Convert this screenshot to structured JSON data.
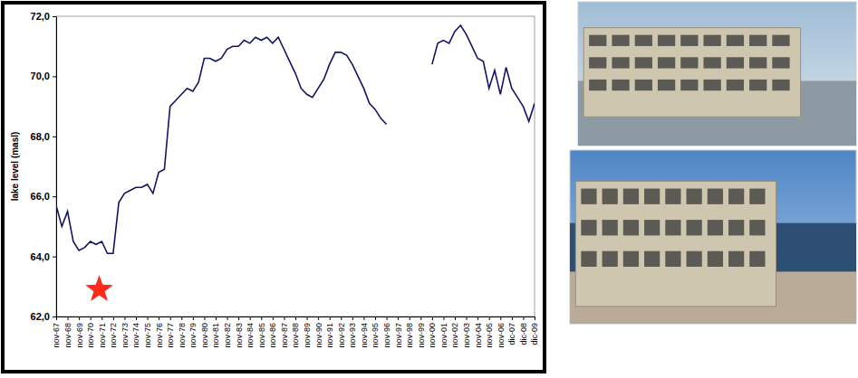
{
  "chart_data": {
    "type": "line",
    "y_label": "lake level (masl)",
    "categories": [
      "nov-67",
      null,
      "nov-68",
      null,
      "nov-69",
      null,
      "nov-70",
      null,
      "nov-71",
      null,
      "nov-72",
      null,
      "nov-73",
      null,
      "nov-74",
      null,
      "nov-75",
      null,
      "nov-76",
      null,
      "nov-77",
      null,
      "nov-78",
      null,
      "nov-79",
      null,
      "nov-80",
      null,
      "nov-81",
      null,
      "nov-82",
      null,
      "nov-83",
      null,
      "nov-84",
      null,
      "nov-85",
      null,
      "nov-86",
      null,
      "nov-87",
      null,
      "nov-88",
      null,
      "nov-89",
      null,
      "nov-90",
      null,
      "nov-91",
      null,
      "nov-92",
      null,
      "nov-93",
      null,
      "nov-94",
      null,
      "nov-95",
      null,
      "nov-96",
      null,
      "nov-97",
      null,
      "nov-98",
      null,
      "nov-99",
      null,
      "nov-00",
      null,
      "nov-01",
      null,
      "nov-02",
      null,
      "nov-03",
      null,
      "nov-04",
      null,
      "nov-05",
      null,
      "nov-06",
      null,
      "dic-07",
      null,
      "dic-08",
      null,
      "dic-09"
    ],
    "values": [
      65.7,
      65.0,
      65.5,
      64.5,
      64.2,
      64.3,
      64.5,
      64.4,
      64.5,
      64.1,
      64.1,
      65.8,
      66.1,
      66.2,
      66.3,
      66.3,
      66.4,
      66.1,
      66.8,
      66.9,
      69.0,
      69.2,
      69.4,
      69.6,
      69.5,
      69.8,
      70.6,
      70.6,
      70.5,
      70.6,
      70.9,
      71.0,
      71.0,
      71.2,
      71.1,
      71.3,
      71.2,
      71.3,
      71.1,
      71.3,
      70.9,
      70.5,
      70.1,
      69.6,
      69.4,
      69.3,
      69.6,
      69.9,
      70.4,
      70.8,
      70.8,
      70.7,
      70.4,
      70.0,
      69.6,
      69.1,
      68.9,
      68.6,
      68.4,
      null,
      null,
      null,
      null,
      null,
      null,
      null,
      70.4,
      71.1,
      71.2,
      71.1,
      71.5,
      71.7,
      71.4,
      71.0,
      70.6,
      70.5,
      69.6,
      70.2,
      69.4,
      70.3,
      69.6,
      69.3,
      69.0,
      68.5,
      69.1
    ],
    "color": "#141466",
    "ylim": [
      62,
      72
    ],
    "yticks": [
      {
        "value": 62,
        "label": "62,0"
      },
      {
        "value": 64,
        "label": "64,0"
      },
      {
        "value": 66,
        "label": "66,0"
      },
      {
        "value": 68,
        "label": "68,0"
      },
      {
        "value": 70,
        "label": "70,0"
      },
      {
        "value": 72,
        "label": "72,0"
      }
    ],
    "grid": false
  }
}
